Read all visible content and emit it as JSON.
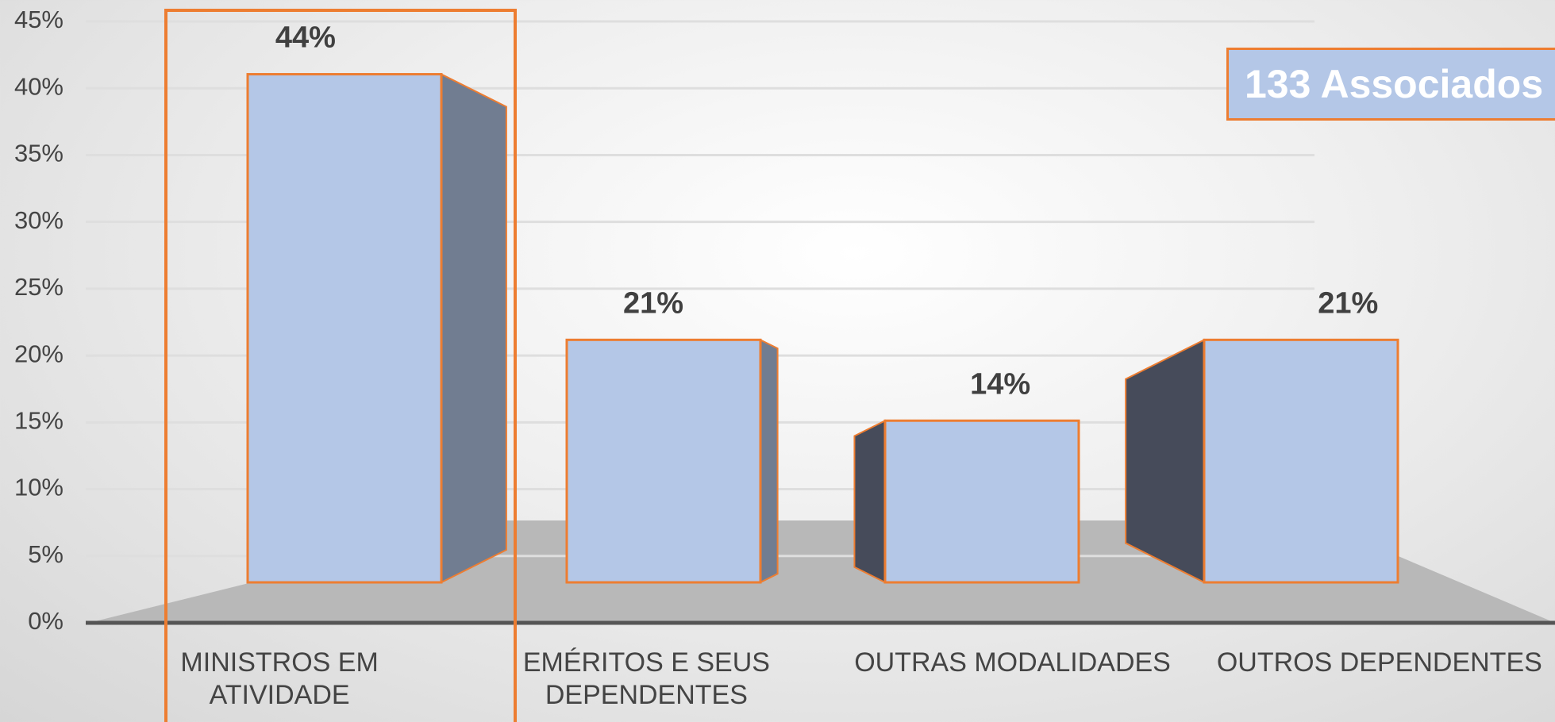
{
  "chart_data": {
    "type": "bar3d",
    "annotation": "133 Associados",
    "categories": [
      "MINISTROS EM ATIVIDADE",
      "EMÉRITOS E SEUS DEPENDENTES",
      "OUTRAS MODALIDADES",
      "OUTROS DEPENDENTES"
    ],
    "values": [
      44,
      21,
      14,
      21
    ],
    "value_labels": [
      "44%",
      "21%",
      "14%",
      "21%"
    ],
    "color": "#b4c7e7",
    "ylim": [
      0,
      45
    ],
    "yticks": [
      {
        "value": 0,
        "label": "0%"
      },
      {
        "value": 5,
        "label": "5%"
      },
      {
        "value": 10,
        "label": "10%"
      },
      {
        "value": 15,
        "label": "15%"
      },
      {
        "value": 20,
        "label": "20%"
      },
      {
        "value": 25,
        "label": "25%"
      },
      {
        "value": 30,
        "label": "30%"
      },
      {
        "value": 35,
        "label": "35%"
      },
      {
        "value": 40,
        "label": "40%"
      },
      {
        "value": 45,
        "label": "45%"
      }
    ],
    "grid": true
  }
}
